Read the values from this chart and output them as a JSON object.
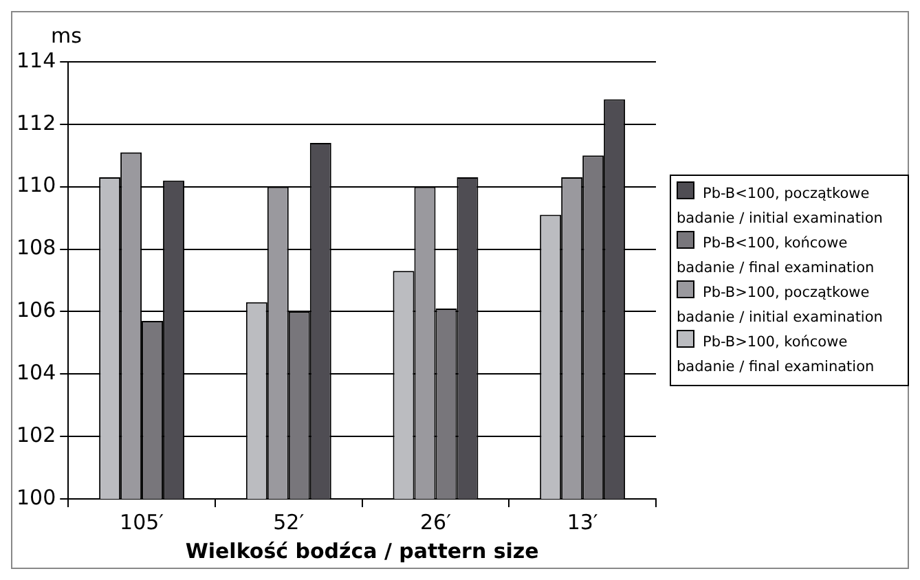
{
  "chart_data": {
    "type": "bar",
    "ylabel": "ms",
    "xlabel": "Wielkość bodźca / pattern size",
    "categories": [
      "105′",
      "52′",
      "26′",
      "13′"
    ],
    "series": [
      {
        "name": "Pb-B>100, końcowe badanie / final examination",
        "color": "#bbbcc0",
        "values": [
          110.3,
          106.3,
          107.3,
          109.1
        ]
      },
      {
        "name": "Pb-B>100, początkowe badanie / initial examination",
        "color": "#9a999e",
        "values": [
          111.1,
          110.0,
          110.0,
          110.3
        ]
      },
      {
        "name": "Pb-B<100, końcowe badanie / final examination",
        "color": "#78767b",
        "values": [
          105.7,
          106.0,
          106.1,
          111.0
        ]
      },
      {
        "name": "Pb-B<100, początkowe badanie / initial examination",
        "color": "#4f4d53",
        "values": [
          110.2,
          111.4,
          110.3,
          112.8
        ]
      }
    ],
    "ylim": [
      100,
      114
    ],
    "yticks": [
      100,
      102,
      104,
      106,
      108,
      110,
      112,
      114
    ],
    "grid": "y",
    "legend": "right"
  }
}
